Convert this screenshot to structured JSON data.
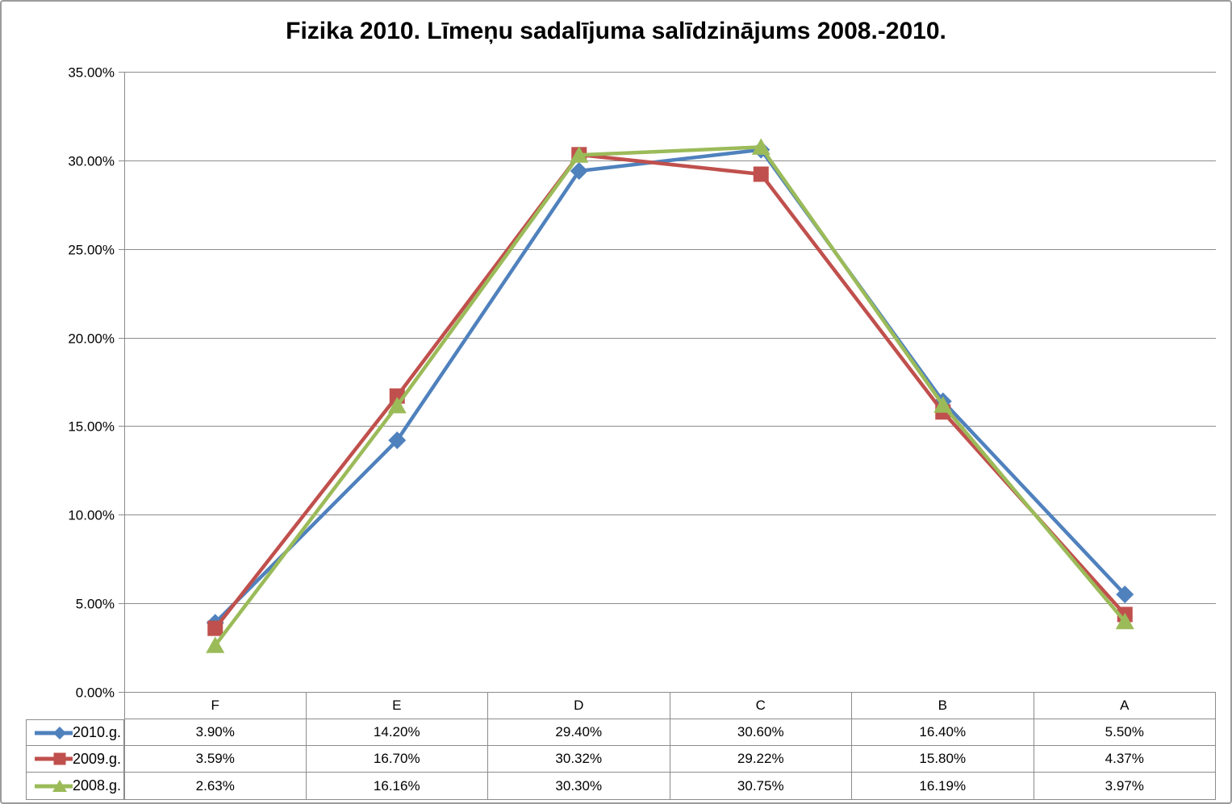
{
  "chart_data": {
    "type": "line",
    "title": "Fizika 2010. Līmeņu sadalījuma salīdzinājums 2008.-2010.",
    "categories": [
      "F",
      "E",
      "D",
      "C",
      "B",
      "A"
    ],
    "series": [
      {
        "name": "2010.g.",
        "marker": "diamond",
        "color": "#4F81BD",
        "values": [
          3.9,
          14.2,
          29.4,
          30.6,
          16.4,
          5.5
        ],
        "labels": [
          "3.90%",
          "14.20%",
          "29.40%",
          "30.60%",
          "16.40%",
          "5.50%"
        ]
      },
      {
        "name": "2009.g.",
        "marker": "square",
        "color": "#C0504D",
        "values": [
          3.59,
          16.7,
          30.32,
          29.22,
          15.8,
          4.37
        ],
        "labels": [
          "3.59%",
          "16.70%",
          "30.32%",
          "29.22%",
          "15.80%",
          "4.37%"
        ]
      },
      {
        "name": "2008.g.",
        "marker": "triangle",
        "color": "#9BBB59",
        "values": [
          2.63,
          16.16,
          30.3,
          30.75,
          16.19,
          3.97
        ],
        "labels": [
          "2.63%",
          "16.16%",
          "30.30%",
          "30.75%",
          "16.19%",
          "3.97%"
        ]
      }
    ],
    "y_axis": {
      "min": 0,
      "max": 35,
      "step": 5,
      "tick_labels": [
        "0.00%",
        "5.00%",
        "10.00%",
        "15.00%",
        "20.00%",
        "25.00%",
        "30.00%",
        "35.00%"
      ]
    },
    "grid": true,
    "legend_position": "left-of-data-table",
    "colors": {
      "gridline": "#8c8c8c",
      "axis": "#8c8c8c",
      "table_border": "#8c8c8c",
      "text": "#000000",
      "background": "#FFFFFF"
    }
  }
}
